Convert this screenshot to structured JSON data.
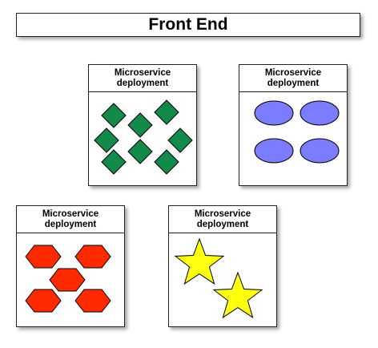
{
  "header": {
    "title": "Front End"
  },
  "cards": [
    {
      "line1": "Microservice",
      "line2": "deployment",
      "shape": "diamond",
      "color": "#138a4a"
    },
    {
      "line1": "Microservice",
      "line2": "deployment",
      "shape": "ellipse",
      "color": "#7c7cff"
    },
    {
      "line1": "Microservice",
      "line2": "deployment",
      "shape": "hexagon",
      "color": "#ff2a00"
    },
    {
      "line1": "Microservice",
      "line2": "deployment",
      "shape": "star",
      "color": "#ffff10"
    }
  ]
}
